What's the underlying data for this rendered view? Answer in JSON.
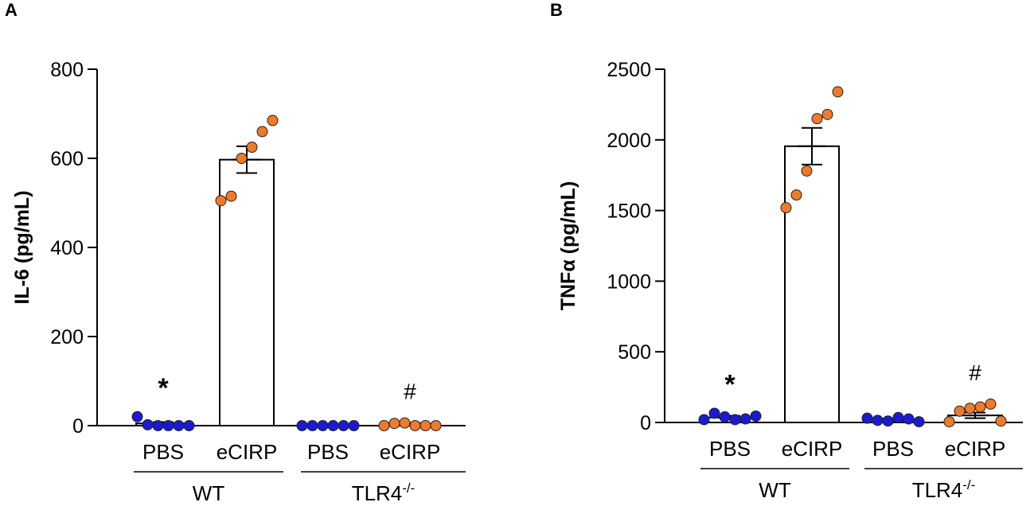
{
  "chart_data": [
    {
      "type": "bar",
      "panel": "A",
      "ylabel": "IL-6 (pg/mL)",
      "ylim": [
        0,
        800
      ],
      "yticks": [
        "0",
        "200",
        "400",
        "600",
        "800"
      ],
      "categories": [
        "PBS",
        "eCIRP",
        "PBS",
        "eCIRP"
      ],
      "groups": [
        {
          "label": "WT",
          "sup": ""
        },
        {
          "label": "TLR4",
          "sup": "-/-"
        }
      ],
      "values": [
        5,
        597,
        0,
        4
      ],
      "sem": [
        3,
        30,
        0,
        2
      ],
      "points": [
        [
          20,
          2,
          0,
          0,
          0,
          0
        ],
        [
          505,
          515,
          600,
          625,
          660,
          685
        ],
        [
          0,
          0,
          0,
          0,
          0,
          0
        ],
        [
          0,
          5,
          6,
          0,
          0,
          0
        ]
      ],
      "point_colors": [
        "#1a1ad6",
        "#f07a2a",
        "#1a1ad6",
        "#f07a2a"
      ],
      "annotations": [
        "*",
        "",
        "",
        "#"
      ],
      "grid": false
    },
    {
      "type": "bar",
      "panel": "B",
      "ylabel": "TNFα (pg/mL)",
      "ylim": [
        0,
        2500
      ],
      "yticks": [
        "0",
        "500",
        "1000",
        "1500",
        "2000",
        "2500"
      ],
      "categories": [
        "PBS",
        "eCIRP",
        "PBS",
        "eCIRP"
      ],
      "groups": [
        {
          "label": "WT",
          "sup": ""
        },
        {
          "label": "TLR4",
          "sup": "-/-"
        }
      ],
      "values": [
        35,
        1955,
        20,
        50
      ],
      "sem": [
        12,
        130,
        8,
        20
      ],
      "points": [
        [
          20,
          65,
          40,
          20,
          25,
          45
        ],
        [
          1520,
          1610,
          1780,
          2150,
          2180,
          2340
        ],
        [
          30,
          15,
          10,
          35,
          25,
          5
        ],
        [
          5,
          80,
          100,
          110,
          130,
          10
        ]
      ],
      "point_colors": [
        "#1a1ad6",
        "#f07a2a",
        "#1a1ad6",
        "#f07a2a"
      ],
      "annotations": [
        "*",
        "",
        "",
        "#"
      ],
      "grid": false
    }
  ]
}
